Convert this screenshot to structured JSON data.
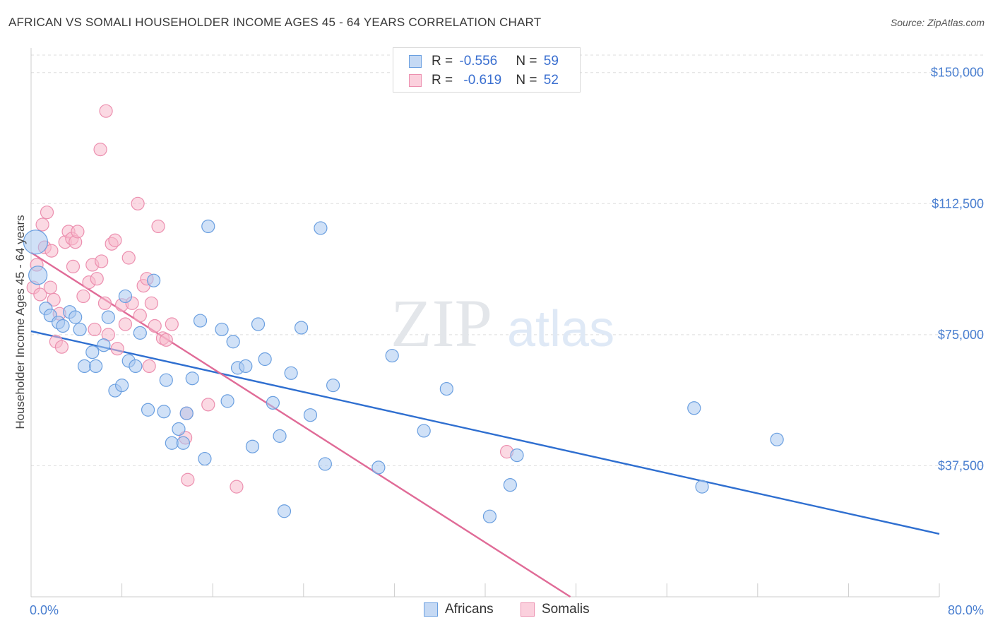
{
  "title": "AFRICAN VS SOMALI HOUSEHOLDER INCOME AGES 45 - 64 YEARS CORRELATION CHART",
  "source": "Source: ZipAtlas.com",
  "watermark": {
    "zip": "ZIP",
    "atlas": "atlas"
  },
  "legend": {
    "africans": {
      "r_label": "R = ",
      "r_value": "-0.556",
      "n_label": "N = ",
      "n_value": "59"
    },
    "somalis": {
      "r_label": "R = ",
      "r_value": "-0.619",
      "n_label": "N = ",
      "n_value": "52"
    }
  },
  "colors": {
    "africans_fill": "#a9c8f0",
    "africans_stroke": "#6a9fe0",
    "africans_line": "#2f6fd0",
    "somalis_fill": "#f7b9cc",
    "somalis_stroke": "#ec8faf",
    "somalis_line": "#e06b97",
    "axis_text": "#4a7fd0",
    "grid": "#dddddd"
  },
  "chart_data": {
    "type": "scatter",
    "title": "AFRICAN VS SOMALI HOUSEHOLDER INCOME AGES 45 - 64 YEARS CORRELATION CHART",
    "xlabel": "",
    "ylabel": "Householder Income Ages 45 - 64 years",
    "xlim": [
      0,
      80
    ],
    "ylim": [
      0,
      155000
    ],
    "x_tick_labels": [
      "0.0%",
      "80.0%"
    ],
    "y_ticks": [
      37500,
      75000,
      112500,
      150000
    ],
    "y_tick_labels": [
      "$37,500",
      "$75,000",
      "$112,500",
      "$150,000"
    ],
    "grid": true,
    "legend_position": "top-center and bottom",
    "series": [
      {
        "name": "Africans",
        "r": -0.556,
        "n": 59,
        "trend": {
          "x": [
            0,
            80
          ],
          "y": [
            76000,
            18000
          ]
        },
        "points": [
          [
            0.4,
            101500
          ],
          [
            0.6,
            92000
          ],
          [
            1.3,
            82500
          ],
          [
            1.7,
            80500
          ],
          [
            2.4,
            78500
          ],
          [
            2.8,
            77500
          ],
          [
            3.4,
            81500
          ],
          [
            3.9,
            80000
          ],
          [
            4.3,
            76500
          ],
          [
            4.7,
            66000
          ],
          [
            5.4,
            70000
          ],
          [
            5.7,
            66000
          ],
          [
            6.4,
            72000
          ],
          [
            6.8,
            80000
          ],
          [
            7.4,
            59000
          ],
          [
            8.0,
            60500
          ],
          [
            8.3,
            86000
          ],
          [
            8.6,
            67500
          ],
          [
            9.2,
            66000
          ],
          [
            9.6,
            75500
          ],
          [
            10.3,
            53500
          ],
          [
            10.8,
            90500
          ],
          [
            11.7,
            53000
          ],
          [
            11.9,
            62000
          ],
          [
            12.4,
            44000
          ],
          [
            13.0,
            48000
          ],
          [
            13.4,
            44000
          ],
          [
            13.7,
            52500
          ],
          [
            14.2,
            62500
          ],
          [
            14.9,
            79000
          ],
          [
            15.3,
            39500
          ],
          [
            15.6,
            106000
          ],
          [
            16.8,
            76500
          ],
          [
            17.3,
            56000
          ],
          [
            17.8,
            73000
          ],
          [
            18.2,
            65500
          ],
          [
            18.9,
            66000
          ],
          [
            19.5,
            43000
          ],
          [
            20.0,
            78000
          ],
          [
            20.6,
            68000
          ],
          [
            21.3,
            55500
          ],
          [
            21.9,
            46000
          ],
          [
            22.3,
            24500
          ],
          [
            22.9,
            64000
          ],
          [
            23.8,
            77000
          ],
          [
            24.6,
            52000
          ],
          [
            25.9,
            38000
          ],
          [
            26.6,
            60500
          ],
          [
            25.5,
            105500
          ],
          [
            30.6,
            37000
          ],
          [
            31.8,
            69000
          ],
          [
            34.6,
            47500
          ],
          [
            36.6,
            59500
          ],
          [
            40.4,
            23000
          ],
          [
            42.2,
            32000
          ],
          [
            42.8,
            40500
          ],
          [
            58.4,
            54000
          ],
          [
            59.1,
            31500
          ],
          [
            65.7,
            45000
          ]
        ]
      },
      {
        "name": "Somalis",
        "r": -0.619,
        "n": 52,
        "trend": {
          "x": [
            0,
            47.5
          ],
          "y": [
            98500,
            0
          ]
        },
        "points": [
          [
            0.2,
            88500
          ],
          [
            0.5,
            95000
          ],
          [
            0.8,
            86500
          ],
          [
            1.0,
            106500
          ],
          [
            1.2,
            100000
          ],
          [
            1.4,
            110000
          ],
          [
            1.7,
            88500
          ],
          [
            1.8,
            99000
          ],
          [
            2.0,
            85000
          ],
          [
            2.2,
            73000
          ],
          [
            2.5,
            81000
          ],
          [
            2.7,
            71500
          ],
          [
            3.0,
            101500
          ],
          [
            3.3,
            104500
          ],
          [
            3.6,
            102500
          ],
          [
            3.7,
            94500
          ],
          [
            3.9,
            101500
          ],
          [
            4.1,
            104500
          ],
          [
            4.6,
            86000
          ],
          [
            5.1,
            90000
          ],
          [
            5.4,
            95000
          ],
          [
            5.6,
            76500
          ],
          [
            5.8,
            91000
          ],
          [
            6.2,
            96000
          ],
          [
            6.5,
            84000
          ],
          [
            6.8,
            75000
          ],
          [
            7.1,
            101000
          ],
          [
            7.4,
            102000
          ],
          [
            7.6,
            71000
          ],
          [
            8.0,
            83500
          ],
          [
            8.3,
            78000
          ],
          [
            8.6,
            97000
          ],
          [
            8.9,
            84000
          ],
          [
            9.4,
            112500
          ],
          [
            9.6,
            80500
          ],
          [
            9.9,
            89000
          ],
          [
            10.2,
            91000
          ],
          [
            10.6,
            84000
          ],
          [
            10.9,
            77500
          ],
          [
            11.2,
            106000
          ],
          [
            11.6,
            74000
          ],
          [
            11.9,
            73500
          ],
          [
            12.4,
            78000
          ],
          [
            6.6,
            139000
          ],
          [
            6.1,
            128000
          ],
          [
            10.4,
            66000
          ],
          [
            13.6,
            45500
          ],
          [
            13.7,
            52500
          ],
          [
            13.8,
            33500
          ],
          [
            15.6,
            55000
          ],
          [
            18.1,
            31500
          ],
          [
            41.9,
            41500
          ]
        ]
      }
    ]
  },
  "bottom_legend": {
    "africans": "Africans",
    "somalis": "Somalis"
  }
}
